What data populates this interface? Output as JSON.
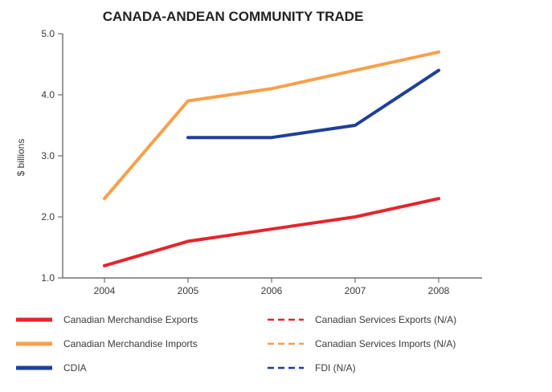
{
  "chart_data": {
    "type": "line",
    "title": "CANADA-ANDEAN COMMUNITY TRADE",
    "xlabel": "",
    "ylabel": "$ billions",
    "categories": [
      "2004",
      "2005",
      "2006",
      "2007",
      "2008"
    ],
    "ylim": [
      1.0,
      5.0
    ],
    "yticks": [
      "1.0",
      "2.0",
      "3.0",
      "4.0",
      "5.0"
    ],
    "grid": false,
    "legend_position": "bottom",
    "series": [
      {
        "name": "Canadian Merchandise Exports",
        "color": "#e3262c",
        "style": "solid",
        "values": [
          1.2,
          1.6,
          1.8,
          2.0,
          2.3
        ]
      },
      {
        "name": "Canadian Merchandise Imports",
        "color": "#f7a04b",
        "style": "solid",
        "values": [
          2.3,
          3.9,
          4.1,
          4.4,
          4.7
        ]
      },
      {
        "name": "CDIA",
        "color": "#1e3f99",
        "style": "solid",
        "values": [
          null,
          3.3,
          3.3,
          3.5,
          4.4
        ]
      }
    ],
    "legend": [
      {
        "name": "Canadian Merchandise Exports",
        "color": "#e3262c",
        "style": "solid"
      },
      {
        "name": "Canadian Services Exports (N/A)",
        "color": "#e3262c",
        "style": "dashed"
      },
      {
        "name": "Canadian Merchandise Imports",
        "color": "#f7a04b",
        "style": "solid"
      },
      {
        "name": "Canadian Services Imports (N/A)",
        "color": "#f7a04b",
        "style": "dashed"
      },
      {
        "name": "CDIA",
        "color": "#1e3f99",
        "style": "solid"
      },
      {
        "name": "FDI (N/A)",
        "color": "#1e3f99",
        "style": "dashed"
      }
    ]
  },
  "colors": {
    "axis": "#6f6f6f",
    "text": "#3a3a3a",
    "title": "#222222"
  }
}
